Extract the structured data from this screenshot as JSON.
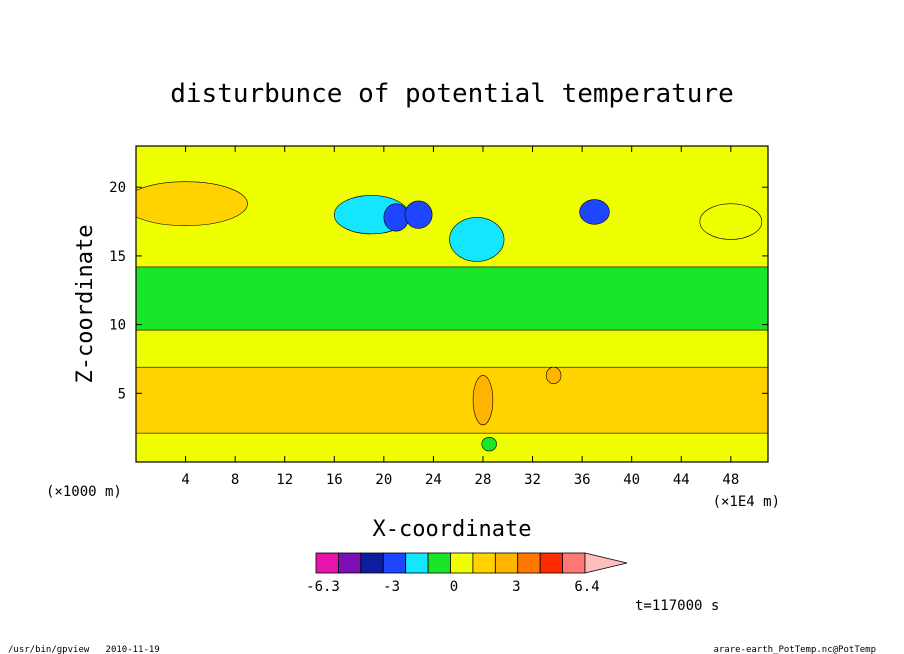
{
  "chart_data": {
    "type": "heatmap",
    "title": "disturbunce of potential temperature",
    "xlabel": "X-coordinate",
    "ylabel": "Z-coordinate",
    "x_unit_left": "(×1000 m)",
    "x_unit_right": "(×1E4 m)",
    "xlim": [
      0,
      51
    ],
    "ylim": [
      0,
      23
    ],
    "x_ticks": [
      "4",
      "8",
      "12",
      "16",
      "20",
      "24",
      "28",
      "32",
      "36",
      "40",
      "44",
      "48"
    ],
    "x_tick_values": [
      4,
      8,
      12,
      16,
      20,
      24,
      28,
      32,
      36,
      40,
      44,
      48
    ],
    "y_ticks": [
      "5",
      "10",
      "15",
      "20"
    ],
    "y_tick_values": [
      5,
      10,
      15,
      20
    ],
    "time_label": "t=117000 s",
    "colorbar": {
      "labels": [
        "-6.3",
        "-3",
        "0",
        "3",
        "6.4"
      ],
      "label_values": [
        -6.3,
        -3,
        0,
        3,
        6.4
      ],
      "colors": [
        "#e614a8",
        "#7d0fb4",
        "#0d1ea0",
        "#1e46ff",
        "#14e6ff",
        "#19e628",
        "#f0ff00",
        "#ffd200",
        "#ffb400",
        "#ff7800",
        "#ff2a00",
        "#ff7878",
        "#ffbebe"
      ]
    },
    "fields": [
      {
        "kind": "band",
        "z_bottom": 0,
        "z_top": 23,
        "level": 0.6,
        "color": "#f0ff00"
      },
      {
        "kind": "band",
        "z_bottom": 9.6,
        "z_top": 14.2,
        "level": 0.0,
        "color": "#19e628"
      },
      {
        "kind": "band",
        "z_bottom": 2.1,
        "z_top": 6.9,
        "level": 1.2,
        "color": "#ffd200"
      },
      {
        "kind": "blob",
        "x": 4.0,
        "z": 18.8,
        "rx": 5.0,
        "rz": 1.6,
        "level": 1.2,
        "color": "#ffd200"
      },
      {
        "kind": "blob",
        "x": 19.0,
        "z": 18.0,
        "rx": 3.0,
        "rz": 1.4,
        "level": -1.0,
        "color": "#14e6ff"
      },
      {
        "kind": "blob",
        "x": 21.0,
        "z": 17.8,
        "rx": 1.0,
        "rz": 1.0,
        "level": -2.3,
        "color": "#1e46ff"
      },
      {
        "kind": "blob",
        "x": 22.8,
        "z": 18.0,
        "rx": 1.1,
        "rz": 1.0,
        "level": -2.3,
        "color": "#1e46ff"
      },
      {
        "kind": "blob",
        "x": 27.5,
        "z": 16.2,
        "rx": 2.2,
        "rz": 1.6,
        "level": -1.0,
        "color": "#14e6ff"
      },
      {
        "kind": "blob",
        "x": 37.0,
        "z": 18.2,
        "rx": 1.2,
        "rz": 0.9,
        "level": -2.3,
        "color": "#1e46ff"
      },
      {
        "kind": "blob",
        "x": 28.0,
        "z": 4.5,
        "rx": 0.8,
        "rz": 1.8,
        "level": 2.0,
        "color": "#ffb400"
      },
      {
        "kind": "blob",
        "x": 33.7,
        "z": 6.3,
        "rx": 0.6,
        "rz": 0.6,
        "level": 2.0,
        "color": "#ffb400"
      },
      {
        "kind": "blob",
        "x": 28.5,
        "z": 1.3,
        "rx": 0.6,
        "rz": 0.5,
        "level": 0.0,
        "color": "#19e628"
      },
      {
        "kind": "blob",
        "x": 48.0,
        "z": 17.5,
        "rx": 2.5,
        "rz": 1.3,
        "level": 0.6,
        "color": "#f0ff00"
      }
    ]
  },
  "footer": {
    "left": "/usr/bin/gpview   2010-11-19",
    "right": "arare-earth_PotTemp.nc@PotTemp"
  }
}
